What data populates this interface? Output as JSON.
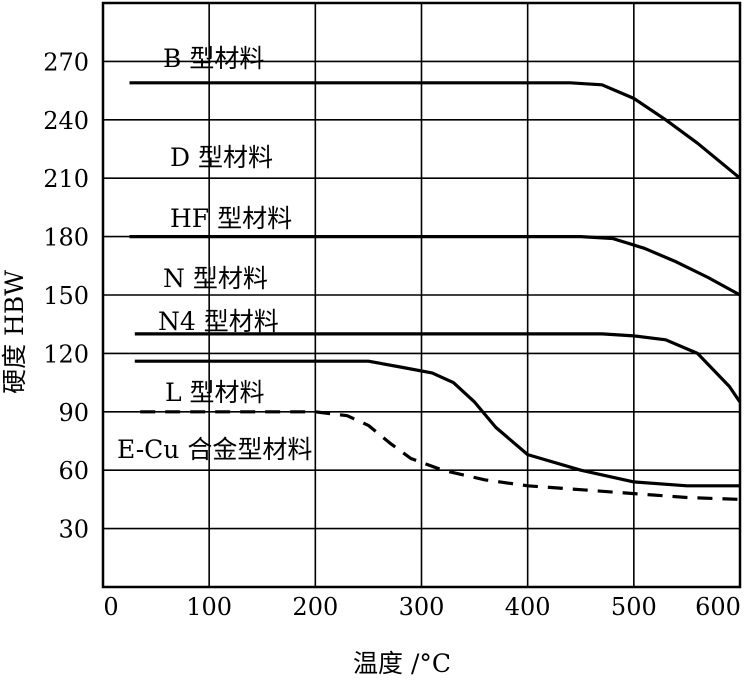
{
  "chart_data": {
    "type": "line",
    "xlabel": "温度 /°C",
    "ylabel": "硬度 HBW",
    "xlim": [
      0,
      600
    ],
    "ylim": [
      0,
      300
    ],
    "x_ticks": [
      "0",
      "100",
      "200",
      "300",
      "400",
      "500",
      "600"
    ],
    "y_ticks": [
      "30",
      "60",
      "90",
      "120",
      "150",
      "180",
      "210",
      "240",
      "270"
    ],
    "grid": true,
    "series": [
      {
        "name": "B 型材料",
        "line_style": "solid",
        "points": [
          [
            25,
            259
          ],
          [
            200,
            259
          ],
          [
            440,
            259
          ],
          [
            470,
            258
          ],
          [
            500,
            251
          ],
          [
            530,
            240
          ],
          [
            560,
            228
          ],
          [
            600,
            210
          ]
        ]
      },
      {
        "name": "D 型材料",
        "line_style": "none",
        "points": []
      },
      {
        "name": "HF 型材料",
        "line_style": "solid",
        "points": [
          [
            25,
            180
          ],
          [
            200,
            180
          ],
          [
            450,
            180
          ],
          [
            480,
            179
          ],
          [
            510,
            174
          ],
          [
            540,
            167
          ],
          [
            570,
            159
          ],
          [
            600,
            150
          ]
        ]
      },
      {
        "name": "N 型材料",
        "line_style": "none",
        "points": []
      },
      {
        "name": "N4 型材料",
        "line_style": "solid",
        "points": [
          [
            30,
            130
          ],
          [
            200,
            130
          ],
          [
            470,
            130
          ],
          [
            500,
            129
          ],
          [
            530,
            127
          ],
          [
            560,
            120
          ],
          [
            590,
            103
          ],
          [
            600,
            95
          ]
        ]
      },
      {
        "name": "L 型材料",
        "line_style": "solid",
        "points": [
          [
            30,
            116
          ],
          [
            150,
            116
          ],
          [
            250,
            116
          ],
          [
            280,
            113
          ],
          [
            310,
            110
          ],
          [
            330,
            105
          ],
          [
            350,
            95
          ],
          [
            370,
            82
          ],
          [
            400,
            68
          ],
          [
            450,
            60
          ],
          [
            500,
            54
          ],
          [
            550,
            52
          ],
          [
            600,
            52
          ]
        ]
      },
      {
        "name": "E-Cu 合金型材料",
        "line_style": "dashed",
        "points": [
          [
            35,
            90
          ],
          [
            200,
            90
          ],
          [
            230,
            88
          ],
          [
            250,
            83
          ],
          [
            270,
            74
          ],
          [
            290,
            66
          ],
          [
            320,
            60
          ],
          [
            360,
            55
          ],
          [
            400,
            52
          ],
          [
            450,
            50
          ],
          [
            500,
            48
          ],
          [
            550,
            46
          ],
          [
            600,
            45
          ]
        ]
      }
    ]
  }
}
